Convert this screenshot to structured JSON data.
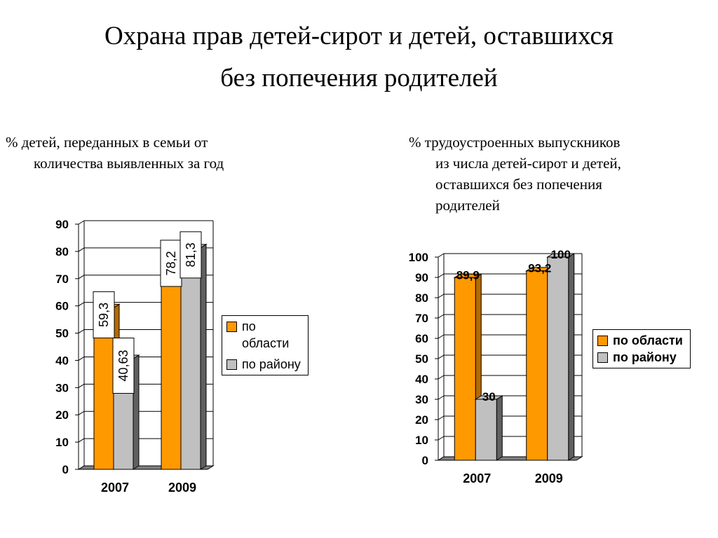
{
  "title_line1": "Охрана прав детей-сирот и детей, оставшихся",
  "title_line2": "без попечения родителей",
  "left": {
    "subtitle_line1": "% детей, переданных в семьи от",
    "subtitle_line2": "количества выявленных за год"
  },
  "right": {
    "subtitle_line1": "% трудоустроенных выпускников",
    "subtitle_line2": "из числа детей-сирот и детей,",
    "subtitle_line3": "оставшихся без попечения",
    "subtitle_line4": "родителей"
  },
  "colors": {
    "oblast": "#FF9900",
    "rayon": "#C0C0C0",
    "frame_floor": "#808080"
  },
  "chart_data": [
    {
      "type": "bar",
      "categories": [
        "2007",
        "2009"
      ],
      "series": [
        {
          "name": "по области",
          "values": [
            59.3,
            78.2
          ],
          "labels": [
            "59,3",
            "78,2"
          ]
        },
        {
          "name": "по району",
          "values": [
            40.63,
            81.3
          ],
          "labels": [
            "40,63",
            "81,3"
          ]
        }
      ],
      "ylim": [
        0,
        90
      ],
      "yticks": [
        "0",
        "10",
        "20",
        "30",
        "40",
        "50",
        "60",
        "70",
        "80",
        "90"
      ],
      "legend": [
        "по области",
        "по району"
      ],
      "legend_position": "right",
      "grid": true
    },
    {
      "type": "bar",
      "categories": [
        "2007",
        "2009"
      ],
      "series": [
        {
          "name": "по области",
          "values": [
            89.9,
            93.2
          ],
          "labels": [
            "89,9",
            "93,2"
          ]
        },
        {
          "name": "по району",
          "values": [
            30,
            100
          ],
          "labels": [
            "30",
            "100"
          ]
        }
      ],
      "ylim": [
        0,
        100
      ],
      "yticks": [
        "0",
        "10",
        "20",
        "30",
        "40",
        "50",
        "60",
        "70",
        "80",
        "90",
        "100"
      ],
      "legend": [
        "по области",
        "по району"
      ],
      "legend_position": "right",
      "grid": true
    }
  ]
}
